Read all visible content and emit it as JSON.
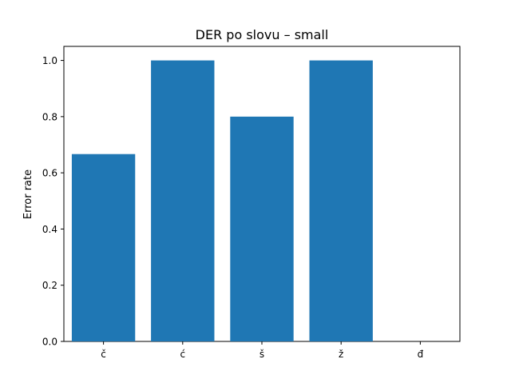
{
  "chart_data": {
    "type": "bar",
    "title": "DER po slovu  –  small",
    "xlabel": "",
    "ylabel": "Error rate",
    "categories": [
      "č",
      "ć",
      "š",
      "ž",
      "đ"
    ],
    "values": [
      0.6667,
      1.0,
      0.8,
      1.0,
      0.0
    ],
    "ylim": [
      0,
      1.05
    ],
    "yticks": [
      0.0,
      0.2,
      0.4,
      0.6,
      0.8,
      1.0
    ],
    "ytick_labels": [
      "0.0",
      "0.2",
      "0.4",
      "0.6",
      "0.8",
      "1.0"
    ],
    "grid": false,
    "legend": "none",
    "bar_color": "#1f77b4"
  }
}
